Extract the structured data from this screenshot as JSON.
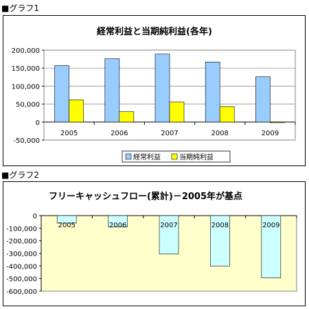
{
  "headings": {
    "chart1": "■グラフ1",
    "chart2": "■グラフ2"
  },
  "colors": {
    "ordinary": "#99ccff",
    "net": "#ffff00",
    "cashflow": "#ccffff",
    "plot2_bg": "#ffffcc",
    "gridline": "#808080",
    "outline": "#000000"
  },
  "chart_data": [
    {
      "type": "bar",
      "title": "経常利益と当期純利益(各年)",
      "categories": [
        "2005",
        "2006",
        "2007",
        "2008",
        "2009"
      ],
      "series": [
        {
          "name": "経常利益",
          "values": [
            157000,
            176000,
            189000,
            167000,
            126000
          ]
        },
        {
          "name": "当期純利益",
          "values": [
            62000,
            29000,
            56000,
            43000,
            -2000
          ]
        }
      ],
      "ylim": [
        -50000,
        200000
      ],
      "yticks": [
        -50000,
        0,
        50000,
        100000,
        150000,
        200000
      ],
      "ytick_labels": [
        "-50,000",
        "0",
        "50,000",
        "100,000",
        "150,000",
        "200,000"
      ],
      "grid": true,
      "legend": "bottom"
    },
    {
      "type": "bar",
      "title": "フリーキャッシュフロー(累計)－2005年が基点",
      "categories": [
        "2005",
        "2006",
        "2007",
        "2008",
        "2009"
      ],
      "series": [
        {
          "values": [
            -60000,
            -90000,
            -305000,
            -400000,
            -495000
          ]
        }
      ],
      "ylim": [
        -600000,
        0
      ],
      "yticks": [
        0,
        -100000,
        -200000,
        -300000,
        -400000,
        -500000,
        -600000
      ],
      "ytick_labels": [
        "0",
        "-100,000",
        "-200,000",
        "-300,000",
        "-400,000",
        "-500,000",
        "-600,000"
      ],
      "grid": false,
      "legend": "none"
    }
  ]
}
